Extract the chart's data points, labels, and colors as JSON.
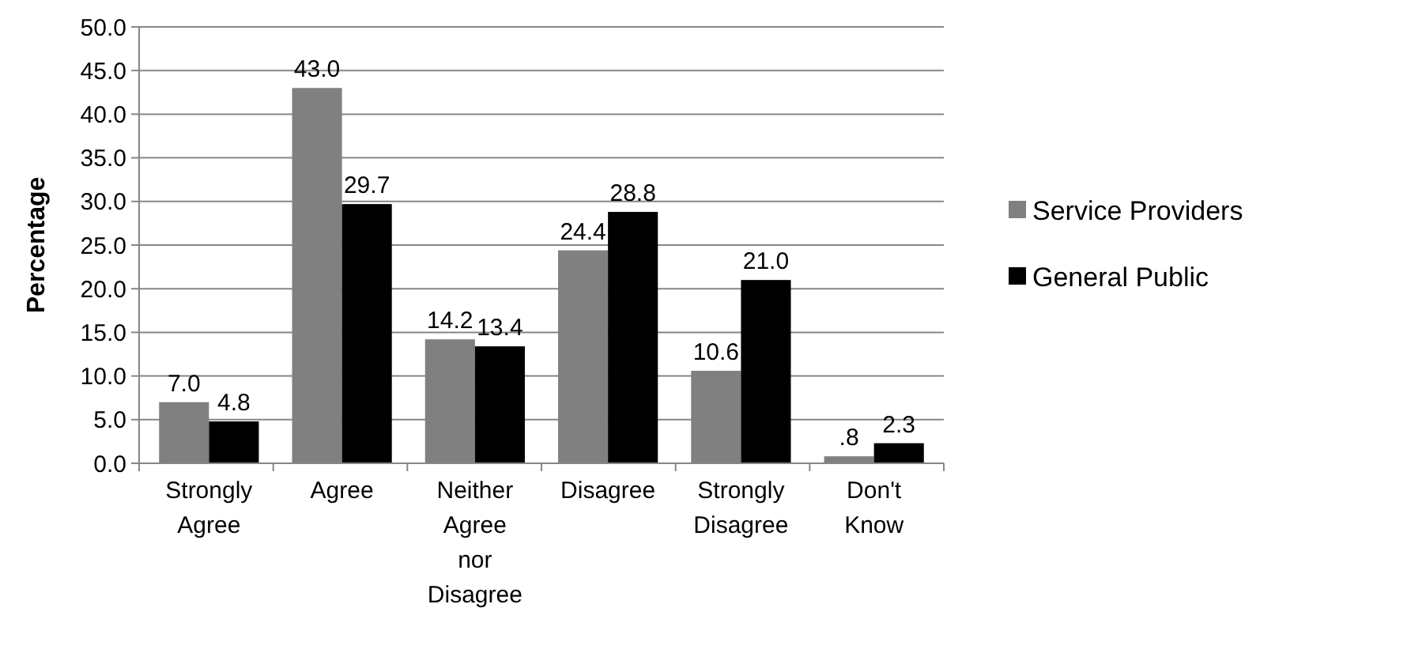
{
  "chart_data": {
    "type": "bar",
    "ylabel": "Percentage",
    "categories": [
      "Strongly Agree",
      "Agree",
      "Neither Agree nor Disagree",
      "Disagree",
      "Strongly Disagree",
      "Don't Know"
    ],
    "series": [
      {
        "name": "Service Providers",
        "color": "#808080",
        "values": [
          7.0,
          43.0,
          14.2,
          24.4,
          10.6,
          0.8
        ],
        "value_labels": [
          "7.0",
          "43.0",
          "14.2",
          "24.4",
          "10.6",
          ".8"
        ]
      },
      {
        "name": "General Public",
        "color": "#000000",
        "values": [
          4.8,
          29.7,
          13.4,
          28.8,
          21.0,
          2.3
        ],
        "value_labels": [
          "4.8",
          "29.7",
          "13.4",
          "28.8",
          "21.0",
          "2.3"
        ]
      }
    ],
    "ylim": [
      0,
      50
    ],
    "yticks": [
      {
        "value": 0,
        "label": "0.0"
      },
      {
        "value": 5,
        "label": "5.0"
      },
      {
        "value": 10,
        "label": "10.0"
      },
      {
        "value": 15,
        "label": "15.0"
      },
      {
        "value": 20,
        "label": "20.0"
      },
      {
        "value": 25,
        "label": "25.0"
      },
      {
        "value": 30,
        "label": "30.0"
      },
      {
        "value": 35,
        "label": "35.0"
      },
      {
        "value": 40,
        "label": "40.0"
      },
      {
        "value": 45,
        "label": "45.0"
      },
      {
        "value": 50,
        "label": "50.0"
      }
    ],
    "grid": "y",
    "legend": "right"
  }
}
